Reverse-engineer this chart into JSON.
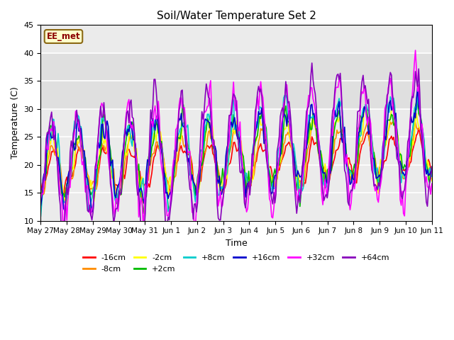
{
  "title": "Soil/Water Temperature Set 2",
  "xlabel": "Time",
  "ylabel": "Temperature (C)",
  "ylim": [
    10,
    45
  ],
  "annotation": "EE_met",
  "background_color": "#ffffff",
  "plot_bg_color": "#ebebeb",
  "grid_color": "#ffffff",
  "series_order": [
    "-16cm",
    "-8cm",
    "-2cm",
    "+2cm",
    "+8cm",
    "+16cm",
    "+32cm",
    "+64cm"
  ],
  "series_colors": {
    "-16cm": "#ff0000",
    "-8cm": "#ff8c00",
    "-2cm": "#ffff00",
    "+2cm": "#00bb00",
    "+8cm": "#00cccc",
    "+16cm": "#0000cc",
    "+32cm": "#ff00ff",
    "+64cm": "#8800bb"
  },
  "lw": 1.2,
  "xtick_labels": [
    "May 27",
    "May 28",
    "May 29",
    "May 30",
    "May 31",
    "Jun 1",
    "Jun 2",
    "Jun 3",
    "Jun 4",
    "Jun 5",
    "Jun 6",
    "Jun 7",
    "Jun 8",
    "Jun 9",
    "Jun 10",
    "Jun 11"
  ],
  "ytick_labels": [
    10,
    15,
    20,
    25,
    30,
    35,
    40,
    45
  ],
  "n_days": 15,
  "pts_per_day": 24,
  "shadeband_low": 30,
  "shadeband_high": 40
}
